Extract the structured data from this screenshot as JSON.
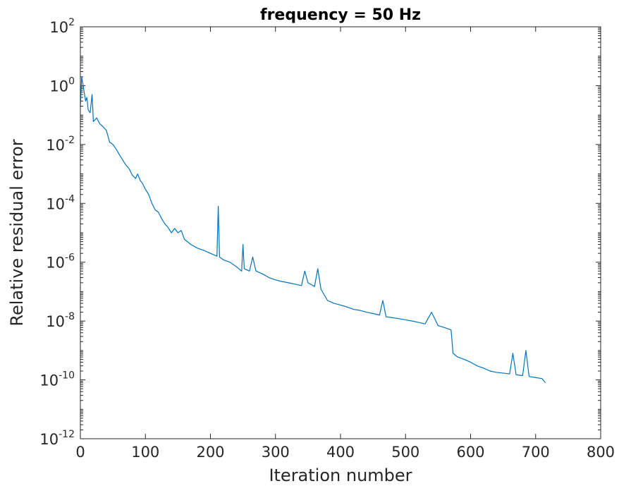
{
  "chart_data": {
    "type": "line",
    "title": "frequency = 50 Hz",
    "xlabel": "Iteration number",
    "ylabel": "Relative residual error",
    "xlim": [
      0,
      800
    ],
    "ylim": [
      1e-12,
      100
    ],
    "yscale": "log",
    "grid": false,
    "x_ticks": [
      "0",
      "100",
      "200",
      "300",
      "400",
      "500",
      "600",
      "700",
      "800"
    ],
    "y_ticks": [
      {
        "base": "10",
        "exp": "2"
      },
      {
        "base": "10",
        "exp": "0"
      },
      {
        "base": "10",
        "exp": "-2"
      },
      {
        "base": "10",
        "exp": "-4"
      },
      {
        "base": "10",
        "exp": "-6"
      },
      {
        "base": "10",
        "exp": "-8"
      },
      {
        "base": "10",
        "exp": "-10"
      },
      {
        "base": "10",
        "exp": "-12"
      }
    ],
    "colors": {
      "line": "#0072bd",
      "axes": "#262626"
    },
    "series": [
      {
        "points": [
          [
            0,
            0.2
          ],
          [
            2,
            2.0
          ],
          [
            5,
            0.8
          ],
          [
            8,
            0.3
          ],
          [
            10,
            0.4
          ],
          [
            12,
            0.15
          ],
          [
            15,
            0.12
          ],
          [
            18,
            0.5
          ],
          [
            20,
            0.06
          ],
          [
            25,
            0.08
          ],
          [
            30,
            0.05
          ],
          [
            35,
            0.04
          ],
          [
            40,
            0.03
          ],
          [
            45,
            0.012
          ],
          [
            50,
            0.01
          ],
          [
            55,
            0.007
          ],
          [
            60,
            0.0045
          ],
          [
            65,
            0.003
          ],
          [
            70,
            0.002
          ],
          [
            75,
            0.0015
          ],
          [
            80,
            0.0009
          ],
          [
            85,
            0.0007
          ],
          [
            88,
            0.001
          ],
          [
            92,
            0.0006
          ],
          [
            95,
            0.0005
          ],
          [
            100,
            0.0003
          ],
          [
            105,
            0.0002
          ],
          [
            110,
            0.0001
          ],
          [
            115,
            6e-05
          ],
          [
            120,
            5e-05
          ],
          [
            125,
            3e-05
          ],
          [
            130,
            2e-05
          ],
          [
            135,
            1.5e-05
          ],
          [
            140,
            1e-05
          ],
          [
            145,
            1.4e-05
          ],
          [
            150,
            1e-05
          ],
          [
            155,
            1.2e-05
          ],
          [
            160,
            6e-06
          ],
          [
            170,
            4e-06
          ],
          [
            180,
            3e-06
          ],
          [
            190,
            2.5e-06
          ],
          [
            200,
            2e-06
          ],
          [
            210,
            1.6e-06
          ],
          [
            212,
            8e-05
          ],
          [
            214,
            1.5e-06
          ],
          [
            220,
            1.2e-06
          ],
          [
            230,
            1e-06
          ],
          [
            240,
            7e-07
          ],
          [
            248,
            5e-07
          ],
          [
            250,
            4e-06
          ],
          [
            252,
            6e-07
          ],
          [
            260,
            5e-07
          ],
          [
            265,
            1.5e-06
          ],
          [
            270,
            5e-07
          ],
          [
            280,
            4e-07
          ],
          [
            290,
            3e-07
          ],
          [
            300,
            2.5e-07
          ],
          [
            310,
            2.2e-07
          ],
          [
            320,
            2e-07
          ],
          [
            330,
            1.8e-07
          ],
          [
            340,
            1.6e-07
          ],
          [
            345,
            5e-07
          ],
          [
            350,
            2e-07
          ],
          [
            360,
            1.5e-07
          ],
          [
            365,
            6e-07
          ],
          [
            370,
            1.2e-07
          ],
          [
            380,
            5e-08
          ],
          [
            390,
            4e-08
          ],
          [
            400,
            3.5e-08
          ],
          [
            410,
            3e-08
          ],
          [
            420,
            2.5e-08
          ],
          [
            430,
            2.3e-08
          ],
          [
            440,
            2e-08
          ],
          [
            450,
            1.8e-08
          ],
          [
            460,
            1.6e-08
          ],
          [
            465,
            5e-08
          ],
          [
            470,
            1.4e-08
          ],
          [
            480,
            1.3e-08
          ],
          [
            490,
            1.2e-08
          ],
          [
            500,
            1.1e-08
          ],
          [
            510,
            1e-08
          ],
          [
            520,
            9e-09
          ],
          [
            530,
            8e-09
          ],
          [
            540,
            2e-08
          ],
          [
            550,
            7e-09
          ],
          [
            560,
            6e-09
          ],
          [
            570,
            5e-09
          ],
          [
            573,
            8e-10
          ],
          [
            580,
            6e-10
          ],
          [
            590,
            5e-10
          ],
          [
            600,
            4e-10
          ],
          [
            610,
            3e-10
          ],
          [
            620,
            2.5e-10
          ],
          [
            630,
            2e-10
          ],
          [
            640,
            1.8e-10
          ],
          [
            650,
            1.7e-10
          ],
          [
            660,
            1.6e-10
          ],
          [
            665,
            8e-10
          ],
          [
            670,
            1.5e-10
          ],
          [
            680,
            1.4e-10
          ],
          [
            685,
            1e-09
          ],
          [
            690,
            1.3e-10
          ],
          [
            700,
            1.2e-10
          ],
          [
            710,
            1.1e-10
          ],
          [
            715,
            8e-11
          ]
        ]
      }
    ]
  }
}
